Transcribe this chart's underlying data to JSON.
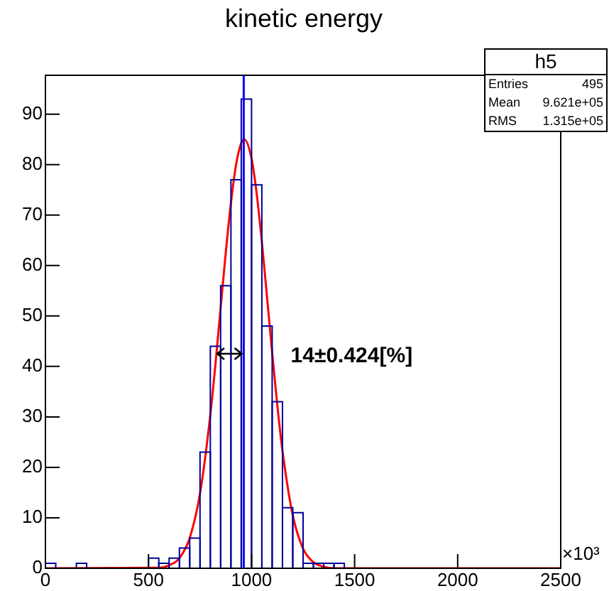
{
  "chart_data": {
    "type": "histogram",
    "title": "kinetic energy",
    "bins": [
      0,
      50,
      100,
      150,
      200,
      250,
      300,
      350,
      400,
      450,
      500,
      550,
      600,
      650,
      700,
      750,
      800,
      850,
      900,
      950,
      1000,
      1050,
      1100,
      1150,
      1200,
      1250,
      1300,
      1350,
      1400,
      1450,
      1500,
      1550,
      1600,
      1650,
      1700,
      1750,
      1800,
      1850,
      1900,
      1950,
      2000,
      2050,
      2100,
      2150,
      2200,
      2250,
      2300,
      2350,
      2400,
      2450,
      2500
    ],
    "values": [
      1,
      0,
      0,
      1,
      0,
      0,
      0,
      0,
      0,
      0,
      2,
      1,
      2,
      4,
      6,
      23,
      44,
      56,
      77,
      93,
      76,
      48,
      33,
      12,
      11,
      1,
      1,
      1,
      1,
      0,
      0,
      0,
      0,
      0,
      0,
      0,
      0,
      0,
      0,
      0,
      0,
      0,
      0,
      0,
      0,
      0,
      0,
      0,
      0,
      0
    ],
    "color": "#000099",
    "series": [
      {
        "type": "line",
        "color": "#ff0000",
        "x": [
          0,
          550,
          600,
          650,
          700,
          750,
          800,
          825,
          850,
          875,
          900,
          925,
          950,
          965,
          1000,
          1025,
          1050,
          1075,
          1100,
          1125,
          1150,
          1200,
          1250,
          1300,
          1350,
          1400,
          2500
        ],
        "values": [
          0,
          0.1,
          0.6,
          2,
          6,
          14.8,
          30.4,
          40.5,
          51.6,
          62.6,
          72.4,
          80,
          84.3,
          85,
          81.2,
          74.2,
          64.7,
          53.8,
          42.7,
          32.3,
          23.3,
          10.5,
          3.9,
          1.2,
          0.3,
          0,
          0
        ]
      }
    ],
    "ref_lines": [
      {
        "axis": "x",
        "value": 962.1,
        "color": "#0000ff"
      }
    ],
    "annotations": [
      "14±0.424[%]",
      "h5",
      "Entries 495",
      "Mean 9.621e+05",
      "RMS 1.315e+05",
      "×10³"
    ],
    "xlim": [
      0,
      2500
    ],
    "xticks": [
      0,
      500,
      1000,
      1500,
      2000,
      2500
    ],
    "ylim": [
      0,
      97.7
    ],
    "yticks": [
      0,
      10,
      20,
      30,
      40,
      50,
      60,
      70,
      80,
      90
    ],
    "grid": false,
    "legend": false
  }
}
